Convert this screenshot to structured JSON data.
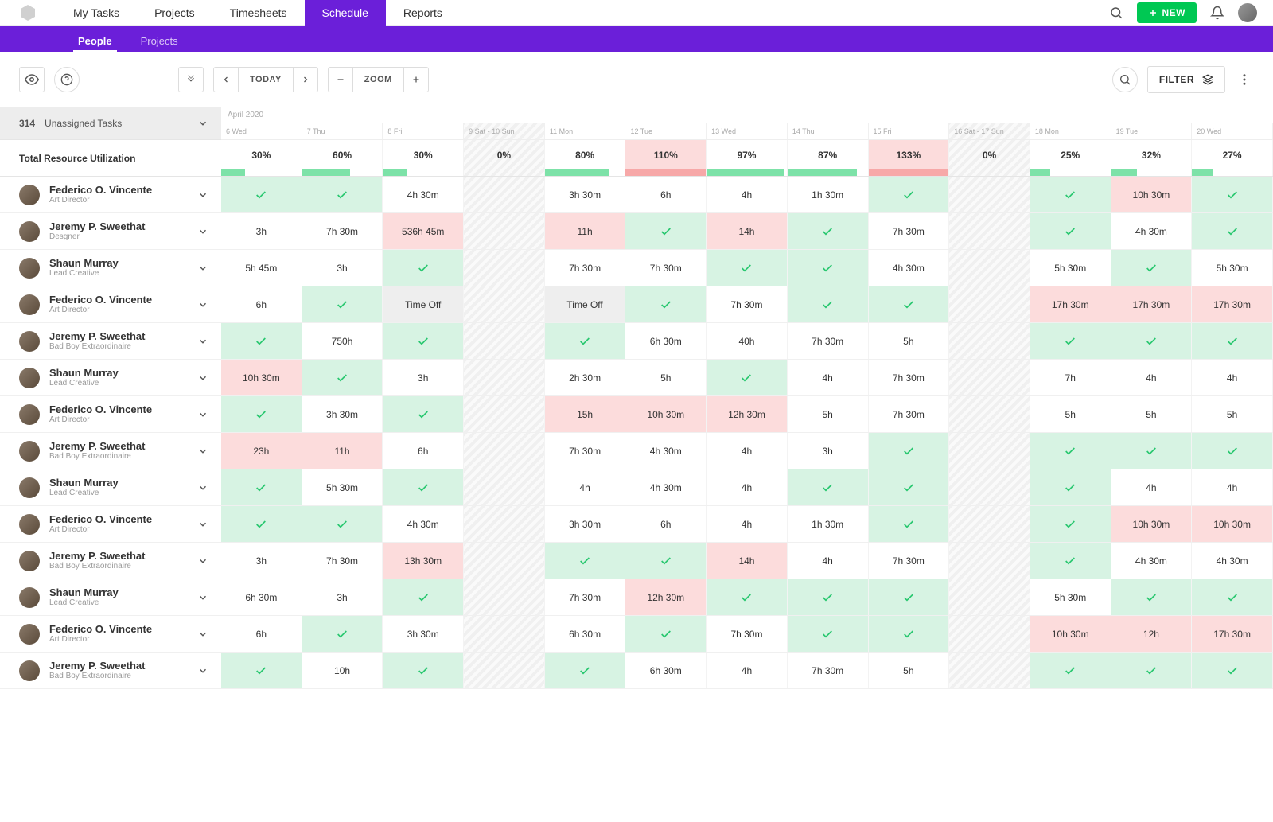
{
  "colors": {
    "purple": "#6b1fd9",
    "green_btn": "#00c853",
    "cell_green": "#d7f3e3",
    "cell_red": "#fcdcdc",
    "cell_grey": "#eeeeee",
    "check_green": "#28c76f",
    "bar_green": "#7de2a8",
    "bar_red": "#f7a8a8"
  },
  "topnav": {
    "items": [
      "My Tasks",
      "Projects",
      "Timesheets",
      "Schedule",
      "Reports"
    ],
    "active_index": 3,
    "new_label": "NEW"
  },
  "subnav": {
    "items": [
      "People",
      "Projects"
    ],
    "active_index": 0
  },
  "toolbar": {
    "today": "TODAY",
    "zoom": "ZOOM",
    "filter": "FILTER"
  },
  "unassigned": {
    "count": "314",
    "label": "Unassigned Tasks"
  },
  "util_label": "Total Resource Utilization",
  "month": "April 2020",
  "columns": [
    {
      "label": "6 Wed",
      "weekend": false
    },
    {
      "label": "7 Thu",
      "weekend": false
    },
    {
      "label": "8 Fri",
      "weekend": false
    },
    {
      "label": "9 Sat - 10 Sun",
      "weekend": true
    },
    {
      "label": "11 Mon",
      "weekend": false
    },
    {
      "label": "12 Tue",
      "weekend": false
    },
    {
      "label": "13 Wed",
      "weekend": false
    },
    {
      "label": "14 Thu",
      "weekend": false
    },
    {
      "label": "15 Fri",
      "weekend": false
    },
    {
      "label": "16 Sat - 17 Sun",
      "weekend": true
    },
    {
      "label": "18 Mon",
      "weekend": false
    },
    {
      "label": "19 Tue",
      "weekend": false
    },
    {
      "label": "20 Wed",
      "weekend": false
    }
  ],
  "utilization": [
    {
      "pct": "30%",
      "bar": 30,
      "over": false
    },
    {
      "pct": "60%",
      "bar": 60,
      "over": false
    },
    {
      "pct": "30%",
      "bar": 30,
      "over": false
    },
    {
      "pct": "0%",
      "bar": 0,
      "over": false,
      "weekend": true
    },
    {
      "pct": "80%",
      "bar": 80,
      "over": false
    },
    {
      "pct": "110%",
      "bar": 100,
      "over": true
    },
    {
      "pct": "97%",
      "bar": 97,
      "over": false
    },
    {
      "pct": "87%",
      "bar": 87,
      "over": false
    },
    {
      "pct": "133%",
      "bar": 100,
      "over": true
    },
    {
      "pct": "0%",
      "bar": 0,
      "over": false,
      "weekend": true
    },
    {
      "pct": "25%",
      "bar": 25,
      "over": false
    },
    {
      "pct": "32%",
      "bar": 32,
      "over": false
    },
    {
      "pct": "27%",
      "bar": 27,
      "over": false
    }
  ],
  "people": [
    {
      "name": "Federico O. Vincente",
      "role": "Art Director",
      "cells": [
        {
          "t": "check",
          "c": "green"
        },
        {
          "t": "check",
          "c": "green"
        },
        {
          "t": "text",
          "v": "4h 30m",
          "c": ""
        },
        {
          "t": "weekend"
        },
        {
          "t": "text",
          "v": "3h 30m",
          "c": ""
        },
        {
          "t": "text",
          "v": "6h",
          "c": ""
        },
        {
          "t": "text",
          "v": "4h",
          "c": ""
        },
        {
          "t": "text",
          "v": "1h 30m",
          "c": ""
        },
        {
          "t": "check",
          "c": "green"
        },
        {
          "t": "weekend"
        },
        {
          "t": "check",
          "c": "green"
        },
        {
          "t": "text",
          "v": "10h 30m",
          "c": "red"
        },
        {
          "t": "check",
          "c": "green"
        }
      ]
    },
    {
      "name": "Jeremy P. Sweethat",
      "role": "Desgner",
      "cells": [
        {
          "t": "text",
          "v": "3h",
          "c": ""
        },
        {
          "t": "text",
          "v": "7h 30m",
          "c": ""
        },
        {
          "t": "text",
          "v": "536h 45m",
          "c": "red"
        },
        {
          "t": "weekend"
        },
        {
          "t": "text",
          "v": "11h",
          "c": "red"
        },
        {
          "t": "check",
          "c": "green"
        },
        {
          "t": "text",
          "v": "14h",
          "c": "red"
        },
        {
          "t": "check",
          "c": "green"
        },
        {
          "t": "text",
          "v": "7h 30m",
          "c": ""
        },
        {
          "t": "weekend"
        },
        {
          "t": "check",
          "c": "green"
        },
        {
          "t": "text",
          "v": "4h 30m",
          "c": ""
        },
        {
          "t": "check",
          "c": "green"
        }
      ]
    },
    {
      "name": "Shaun Murray",
      "role": "Lead Creative",
      "cells": [
        {
          "t": "text",
          "v": "5h 45m",
          "c": ""
        },
        {
          "t": "text",
          "v": "3h",
          "c": ""
        },
        {
          "t": "check",
          "c": "green"
        },
        {
          "t": "weekend"
        },
        {
          "t": "text",
          "v": "7h 30m",
          "c": ""
        },
        {
          "t": "text",
          "v": "7h 30m",
          "c": ""
        },
        {
          "t": "check",
          "c": "green"
        },
        {
          "t": "check",
          "c": "green"
        },
        {
          "t": "text",
          "v": "4h 30m",
          "c": ""
        },
        {
          "t": "weekend"
        },
        {
          "t": "text",
          "v": "5h 30m",
          "c": ""
        },
        {
          "t": "check",
          "c": "green"
        },
        {
          "t": "text",
          "v": "5h 30m",
          "c": ""
        }
      ]
    },
    {
      "name": "Federico O. Vincente",
      "role": "Art Director",
      "cells": [
        {
          "t": "text",
          "v": "6h",
          "c": ""
        },
        {
          "t": "check",
          "c": "green"
        },
        {
          "t": "text",
          "v": "Time Off",
          "c": "grey"
        },
        {
          "t": "weekend"
        },
        {
          "t": "text",
          "v": "Time Off",
          "c": "grey"
        },
        {
          "t": "check",
          "c": "green"
        },
        {
          "t": "text",
          "v": "7h 30m",
          "c": ""
        },
        {
          "t": "check",
          "c": "green"
        },
        {
          "t": "check",
          "c": "green"
        },
        {
          "t": "weekend"
        },
        {
          "t": "text",
          "v": "17h 30m",
          "c": "red"
        },
        {
          "t": "text",
          "v": "17h 30m",
          "c": "red"
        },
        {
          "t": "text",
          "v": "17h 30m",
          "c": "red"
        }
      ]
    },
    {
      "name": "Jeremy P. Sweethat",
      "role": "Bad Boy Extraordinaire",
      "cells": [
        {
          "t": "check",
          "c": "green"
        },
        {
          "t": "text",
          "v": "750h",
          "c": ""
        },
        {
          "t": "check",
          "c": "green"
        },
        {
          "t": "weekend"
        },
        {
          "t": "check",
          "c": "green"
        },
        {
          "t": "text",
          "v": "6h 30m",
          "c": ""
        },
        {
          "t": "text",
          "v": "40h",
          "c": ""
        },
        {
          "t": "text",
          "v": "7h 30m",
          "c": ""
        },
        {
          "t": "text",
          "v": "5h",
          "c": ""
        },
        {
          "t": "weekend"
        },
        {
          "t": "check",
          "c": "green"
        },
        {
          "t": "check",
          "c": "green"
        },
        {
          "t": "check",
          "c": "green"
        }
      ]
    },
    {
      "name": "Shaun Murray",
      "role": "Lead Creative",
      "cells": [
        {
          "t": "text",
          "v": "10h 30m",
          "c": "red"
        },
        {
          "t": "check",
          "c": "green"
        },
        {
          "t": "text",
          "v": "3h",
          "c": ""
        },
        {
          "t": "weekend"
        },
        {
          "t": "text",
          "v": "2h 30m",
          "c": ""
        },
        {
          "t": "text",
          "v": "5h",
          "c": ""
        },
        {
          "t": "check",
          "c": "green"
        },
        {
          "t": "text",
          "v": "4h",
          "c": ""
        },
        {
          "t": "text",
          "v": "7h 30m",
          "c": ""
        },
        {
          "t": "weekend"
        },
        {
          "t": "text",
          "v": "7h",
          "c": ""
        },
        {
          "t": "text",
          "v": "4h",
          "c": ""
        },
        {
          "t": "text",
          "v": "4h",
          "c": ""
        }
      ]
    },
    {
      "name": "Federico O. Vincente",
      "role": "Art Director",
      "cells": [
        {
          "t": "check",
          "c": "green"
        },
        {
          "t": "text",
          "v": "3h 30m",
          "c": ""
        },
        {
          "t": "check",
          "c": "green"
        },
        {
          "t": "weekend"
        },
        {
          "t": "text",
          "v": "15h",
          "c": "red"
        },
        {
          "t": "text",
          "v": "10h 30m",
          "c": "red"
        },
        {
          "t": "text",
          "v": "12h 30m",
          "c": "red"
        },
        {
          "t": "text",
          "v": "5h",
          "c": ""
        },
        {
          "t": "text",
          "v": "7h 30m",
          "c": ""
        },
        {
          "t": "weekend"
        },
        {
          "t": "text",
          "v": "5h",
          "c": ""
        },
        {
          "t": "text",
          "v": "5h",
          "c": ""
        },
        {
          "t": "text",
          "v": "5h",
          "c": ""
        }
      ]
    },
    {
      "name": "Jeremy P. Sweethat",
      "role": "Bad Boy Extraordinaire",
      "cells": [
        {
          "t": "text",
          "v": "23h",
          "c": "red"
        },
        {
          "t": "text",
          "v": "11h",
          "c": "red"
        },
        {
          "t": "text",
          "v": "6h",
          "c": ""
        },
        {
          "t": "weekend"
        },
        {
          "t": "text",
          "v": "7h 30m",
          "c": ""
        },
        {
          "t": "text",
          "v": "4h 30m",
          "c": ""
        },
        {
          "t": "text",
          "v": "4h",
          "c": ""
        },
        {
          "t": "text",
          "v": "3h",
          "c": ""
        },
        {
          "t": "check",
          "c": "green"
        },
        {
          "t": "weekend"
        },
        {
          "t": "check",
          "c": "green"
        },
        {
          "t": "check",
          "c": "green"
        },
        {
          "t": "check",
          "c": "green"
        }
      ]
    },
    {
      "name": "Shaun Murray",
      "role": "Lead Creative",
      "cells": [
        {
          "t": "check",
          "c": "green"
        },
        {
          "t": "text",
          "v": "5h 30m",
          "c": ""
        },
        {
          "t": "check",
          "c": "green"
        },
        {
          "t": "weekend"
        },
        {
          "t": "text",
          "v": "4h",
          "c": ""
        },
        {
          "t": "text",
          "v": "4h 30m",
          "c": ""
        },
        {
          "t": "text",
          "v": "4h",
          "c": ""
        },
        {
          "t": "check",
          "c": "green"
        },
        {
          "t": "check",
          "c": "green"
        },
        {
          "t": "weekend"
        },
        {
          "t": "check",
          "c": "green"
        },
        {
          "t": "text",
          "v": "4h",
          "c": ""
        },
        {
          "t": "text",
          "v": "4h",
          "c": ""
        }
      ]
    },
    {
      "name": "Federico O. Vincente",
      "role": "Art Director",
      "cells": [
        {
          "t": "check",
          "c": "green"
        },
        {
          "t": "check",
          "c": "green"
        },
        {
          "t": "text",
          "v": "4h 30m",
          "c": ""
        },
        {
          "t": "weekend"
        },
        {
          "t": "text",
          "v": "3h 30m",
          "c": ""
        },
        {
          "t": "text",
          "v": "6h",
          "c": ""
        },
        {
          "t": "text",
          "v": "4h",
          "c": ""
        },
        {
          "t": "text",
          "v": "1h 30m",
          "c": ""
        },
        {
          "t": "check",
          "c": "green"
        },
        {
          "t": "weekend"
        },
        {
          "t": "check",
          "c": "green"
        },
        {
          "t": "text",
          "v": "10h 30m",
          "c": "red"
        },
        {
          "t": "text",
          "v": "10h 30m",
          "c": "red"
        }
      ]
    },
    {
      "name": "Jeremy P. Sweethat",
      "role": "Bad Boy Extraordinaire",
      "cells": [
        {
          "t": "text",
          "v": "3h",
          "c": ""
        },
        {
          "t": "text",
          "v": "7h 30m",
          "c": ""
        },
        {
          "t": "text",
          "v": "13h 30m",
          "c": "red"
        },
        {
          "t": "weekend"
        },
        {
          "t": "check",
          "c": "green"
        },
        {
          "t": "check",
          "c": "green"
        },
        {
          "t": "text",
          "v": "14h",
          "c": "red"
        },
        {
          "t": "text",
          "v": "4h",
          "c": ""
        },
        {
          "t": "text",
          "v": "7h 30m",
          "c": ""
        },
        {
          "t": "weekend"
        },
        {
          "t": "check",
          "c": "green"
        },
        {
          "t": "text",
          "v": "4h 30m",
          "c": ""
        },
        {
          "t": "text",
          "v": "4h 30m",
          "c": ""
        }
      ]
    },
    {
      "name": "Shaun Murray",
      "role": "Lead Creative",
      "cells": [
        {
          "t": "text",
          "v": "6h 30m",
          "c": ""
        },
        {
          "t": "text",
          "v": "3h",
          "c": ""
        },
        {
          "t": "check",
          "c": "green"
        },
        {
          "t": "weekend"
        },
        {
          "t": "text",
          "v": "7h 30m",
          "c": ""
        },
        {
          "t": "text",
          "v": "12h 30m",
          "c": "red"
        },
        {
          "t": "check",
          "c": "green"
        },
        {
          "t": "check",
          "c": "green"
        },
        {
          "t": "check",
          "c": "green"
        },
        {
          "t": "weekend"
        },
        {
          "t": "text",
          "v": "5h 30m",
          "c": ""
        },
        {
          "t": "check",
          "c": "green"
        },
        {
          "t": "check",
          "c": "green"
        }
      ]
    },
    {
      "name": "Federico O. Vincente",
      "role": "Art Director",
      "cells": [
        {
          "t": "text",
          "v": "6h",
          "c": ""
        },
        {
          "t": "check",
          "c": "green"
        },
        {
          "t": "text",
          "v": "3h 30m",
          "c": ""
        },
        {
          "t": "weekend"
        },
        {
          "t": "text",
          "v": "6h 30m",
          "c": ""
        },
        {
          "t": "check",
          "c": "green"
        },
        {
          "t": "text",
          "v": "7h 30m",
          "c": ""
        },
        {
          "t": "check",
          "c": "green"
        },
        {
          "t": "check",
          "c": "green"
        },
        {
          "t": "weekend"
        },
        {
          "t": "text",
          "v": "10h 30m",
          "c": "red"
        },
        {
          "t": "text",
          "v": "12h",
          "c": "red"
        },
        {
          "t": "text",
          "v": "17h 30m",
          "c": "red"
        }
      ]
    },
    {
      "name": "Jeremy P. Sweethat",
      "role": "Bad Boy Extraordinaire",
      "cells": [
        {
          "t": "check",
          "c": "green"
        },
        {
          "t": "text",
          "v": "10h",
          "c": ""
        },
        {
          "t": "check",
          "c": "green"
        },
        {
          "t": "weekend"
        },
        {
          "t": "check",
          "c": "green"
        },
        {
          "t": "text",
          "v": "6h 30m",
          "c": ""
        },
        {
          "t": "text",
          "v": "4h",
          "c": ""
        },
        {
          "t": "text",
          "v": "7h 30m",
          "c": ""
        },
        {
          "t": "text",
          "v": "5h",
          "c": ""
        },
        {
          "t": "weekend"
        },
        {
          "t": "check",
          "c": "green"
        },
        {
          "t": "check",
          "c": "green"
        },
        {
          "t": "check",
          "c": "green"
        }
      ]
    }
  ]
}
